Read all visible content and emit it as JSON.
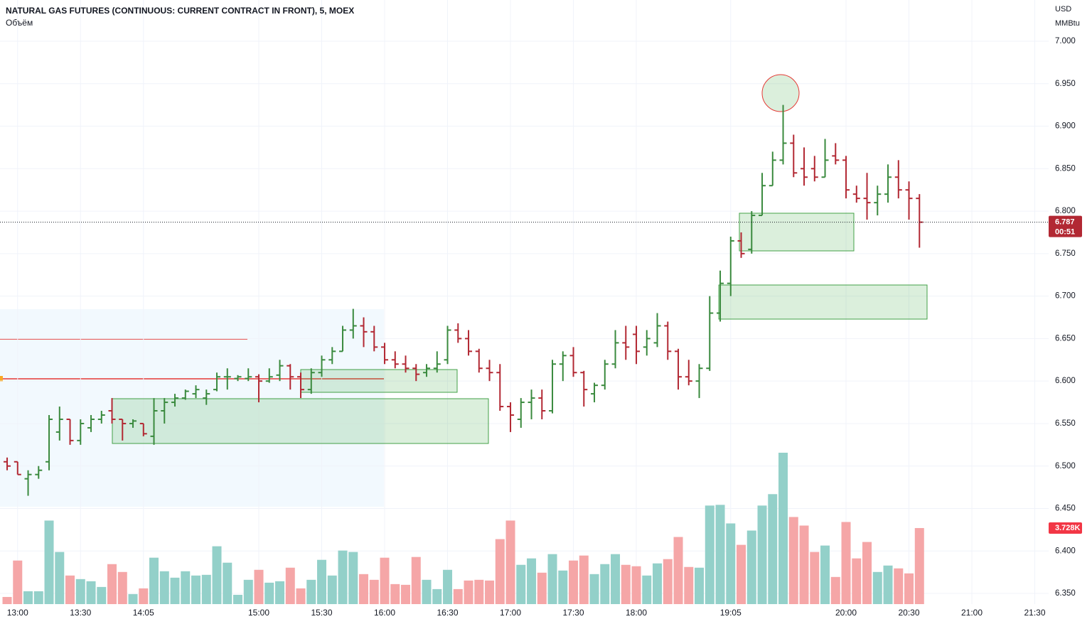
{
  "chart_data": {
    "type": "ohlc",
    "title": "NATURAL GAS FUTURES (CONTINUOUS: CURRENT CONTRACT IN FRONT), 5, MOEX",
    "currency": "USD",
    "unit": "MMBtu",
    "countdown": "00:51",
    "up_color": "#3a8a3e",
    "down_color": "#b22833",
    "xlim": [
      -0.68,
      99.32
    ],
    "xticks": [
      {
        "value": 1,
        "label": "13:00"
      },
      {
        "value": 7,
        "label": "13:30"
      },
      {
        "value": 13,
        "label": "14:05"
      },
      {
        "value": 24,
        "label": "15:00"
      },
      {
        "value": 30,
        "label": "15:30"
      },
      {
        "value": 36,
        "label": "16:00"
      },
      {
        "value": 42,
        "label": "16:30"
      },
      {
        "value": 48,
        "label": "17:00"
      },
      {
        "value": 54,
        "label": "17:30"
      },
      {
        "value": 60,
        "label": "18:00"
      },
      {
        "value": 69,
        "label": "19:05"
      },
      {
        "value": 80,
        "label": "20:00"
      },
      {
        "value": 86,
        "label": "20:30"
      },
      {
        "value": 92,
        "label": "21:00"
      },
      {
        "value": 98,
        "label": "21:30"
      }
    ],
    "ylim": [
      6.3375,
      7.0485
    ],
    "yticks": [
      {
        "value": 7.0,
        "label": "7.000"
      },
      {
        "value": 6.95,
        "label": "6.950"
      },
      {
        "value": 6.9,
        "label": "6.900"
      },
      {
        "value": 6.85,
        "label": "6.850"
      },
      {
        "value": 6.8,
        "label": "6.800"
      },
      {
        "value": 6.75,
        "label": "6.750"
      },
      {
        "value": 6.7,
        "label": "6.700"
      },
      {
        "value": 6.65,
        "label": "6.650"
      },
      {
        "value": 6.6,
        "label": "6.600"
      },
      {
        "value": 6.55,
        "label": "6.550"
      },
      {
        "value": 6.5,
        "label": "6.500"
      },
      {
        "value": 6.45,
        "label": "6.450"
      },
      {
        "value": 6.4,
        "label": "6.400"
      },
      {
        "value": 6.35,
        "label": "6.350"
      }
    ],
    "grid": true,
    "open": [
      6.505,
      6.505,
      6.485,
      6.49,
      6.505,
      6.54,
      6.555,
      6.53,
      6.545,
      6.555,
      6.565,
      6.555,
      6.55,
      6.55,
      6.535,
      6.565,
      6.575,
      6.58,
      6.585,
      6.58,
      6.59,
      6.605,
      6.603,
      6.603,
      6.605,
      6.6,
      6.607,
      6.618,
      6.605,
      6.59,
      6.61,
      6.625,
      6.635,
      6.66,
      6.665,
      6.658,
      6.64,
      6.625,
      6.62,
      6.615,
      6.61,
      6.615,
      6.625,
      6.66,
      6.65,
      6.635,
      6.615,
      6.61,
      6.57,
      6.555,
      6.575,
      6.58,
      6.565,
      6.62,
      6.63,
      6.61,
      6.585,
      6.595,
      6.62,
      6.645,
      6.655,
      6.64,
      6.645,
      6.665,
      6.635,
      6.605,
      6.6,
      6.615,
      6.68,
      6.715,
      6.765,
      6.755,
      6.795,
      6.83,
      6.86,
      6.88,
      6.85,
      6.85,
      6.84,
      6.865,
      6.86,
      6.82,
      6.815,
      6.81,
      6.82,
      6.84,
      6.825,
      6.815
    ],
    "high": [
      6.51,
      6.505,
      6.495,
      6.5,
      6.56,
      6.57,
      6.555,
      6.555,
      6.56,
      6.565,
      6.58,
      6.555,
      6.555,
      6.55,
      6.58,
      6.58,
      6.585,
      6.59,
      6.595,
      6.59,
      6.61,
      6.615,
      6.607,
      6.615,
      6.608,
      6.615,
      6.625,
      6.62,
      6.61,
      6.615,
      6.63,
      6.64,
      6.665,
      6.685,
      6.675,
      6.665,
      6.645,
      6.635,
      6.63,
      6.62,
      6.62,
      6.635,
      6.665,
      6.668,
      6.66,
      6.638,
      6.625,
      6.62,
      6.575,
      6.58,
      6.59,
      6.59,
      6.625,
      6.635,
      6.64,
      6.612,
      6.598,
      6.625,
      6.66,
      6.665,
      6.665,
      6.66,
      6.68,
      6.67,
      6.638,
      6.625,
      6.62,
      6.7,
      6.73,
      6.77,
      6.775,
      6.8,
      6.845,
      6.87,
      6.925,
      6.89,
      6.875,
      6.865,
      6.885,
      6.88,
      6.865,
      6.83,
      6.845,
      6.83,
      6.855,
      6.86,
      6.835,
      6.82
    ],
    "low": [
      6.495,
      6.49,
      6.465,
      6.485,
      6.495,
      6.53,
      6.525,
      6.525,
      6.54,
      6.55,
      6.55,
      6.53,
      6.545,
      6.535,
      6.525,
      6.55,
      6.57,
      6.578,
      6.58,
      6.572,
      6.588,
      6.59,
      6.6,
      6.6,
      6.575,
      6.598,
      6.6,
      6.59,
      6.58,
      6.585,
      6.605,
      6.62,
      6.635,
      6.65,
      6.64,
      6.635,
      6.62,
      6.615,
      6.61,
      6.6,
      6.605,
      6.61,
      6.62,
      6.645,
      6.63,
      6.61,
      6.6,
      6.565,
      6.54,
      6.545,
      6.555,
      6.555,
      6.562,
      6.6,
      6.605,
      6.57,
      6.575,
      6.59,
      6.615,
      6.625,
      6.62,
      6.63,
      6.64,
      6.625,
      6.59,
      6.595,
      6.58,
      6.612,
      6.67,
      6.7,
      6.745,
      6.75,
      6.795,
      6.83,
      6.855,
      6.84,
      6.83,
      6.835,
      6.84,
      6.855,
      6.815,
      6.81,
      6.79,
      6.795,
      6.81,
      6.815,
      6.79,
      6.757
    ],
    "close": [
      6.5,
      6.49,
      6.49,
      6.495,
      6.555,
      6.555,
      6.53,
      6.55,
      6.555,
      6.56,
      6.555,
      6.55,
      6.553,
      6.538,
      6.565,
      6.575,
      6.58,
      6.588,
      6.59,
      6.585,
      6.605,
      6.605,
      6.605,
      6.605,
      6.6,
      6.605,
      6.618,
      6.605,
      6.59,
      6.61,
      6.625,
      6.635,
      6.66,
      6.665,
      6.658,
      6.64,
      6.625,
      6.62,
      6.615,
      6.608,
      6.615,
      6.62,
      6.66,
      6.65,
      6.635,
      6.615,
      6.61,
      6.57,
      6.56,
      6.575,
      6.58,
      6.565,
      6.62,
      6.63,
      6.61,
      6.59,
      6.595,
      6.62,
      6.645,
      6.64,
      6.635,
      6.65,
      6.665,
      6.635,
      6.605,
      6.6,
      6.615,
      6.68,
      6.715,
      6.765,
      6.75,
      6.795,
      6.83,
      6.86,
      6.88,
      6.845,
      6.84,
      6.84,
      6.86,
      6.86,
      6.825,
      6.815,
      6.81,
      6.82,
      6.84,
      6.825,
      6.815,
      6.787
    ],
    "volume": {
      "name": "Объём",
      "up_color": "#93d0c9",
      "down_color": "#f5a6a7",
      "label": "3.728K",
      "values": [
        350,
        2135,
        630,
        630,
        4095,
        2555,
        1400,
        1225,
        1120,
        840,
        1960,
        1575,
        490,
        770,
        2275,
        1610,
        1295,
        1610,
        1400,
        1435,
        2835,
        2030,
        455,
        1190,
        1680,
        1050,
        1120,
        1785,
        770,
        1190,
        2170,
        1400,
        2625,
        2555,
        1470,
        1190,
        2275,
        980,
        945,
        2310,
        1190,
        735,
        1680,
        735,
        1155,
        1190,
        1155,
        3185,
        4095,
        1925,
        2240,
        1540,
        2450,
        1645,
        2135,
        2380,
        1470,
        1960,
        2450,
        1925,
        1855,
        1400,
        1995,
        2205,
        3290,
        1820,
        1785,
        4830,
        4865,
        3955,
        2905,
        3605,
        4830,
        5390,
        7420,
        4270,
        3850,
        2555,
        2870,
        1330,
        4025,
        2240,
        3045,
        1575,
        1890,
        1750,
        1505,
        3728
      ]
    }
  }
}
